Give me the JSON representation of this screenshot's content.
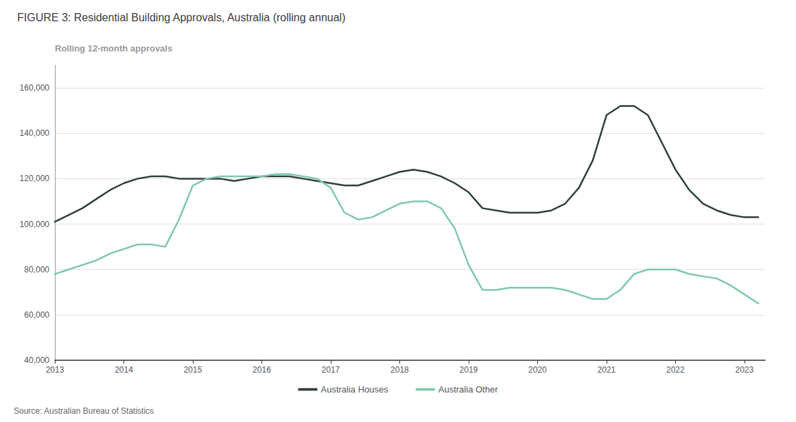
{
  "chart_data": {
    "type": "line",
    "title": "FIGURE 3: Residential Building Approvals, Australia (rolling annual)",
    "ylabel": "Rolling 12-month approvals",
    "annotations": [
      "Source: Australian Bureau of Statistics"
    ],
    "x": [
      2013.0,
      2013.2,
      2013.4,
      2013.6,
      2013.8,
      2014.0,
      2014.2,
      2014.4,
      2014.6,
      2014.8,
      2015.0,
      2015.2,
      2015.4,
      2015.6,
      2015.8,
      2016.0,
      2016.2,
      2016.4,
      2016.6,
      2016.8,
      2017.0,
      2017.2,
      2017.4,
      2017.6,
      2017.8,
      2018.0,
      2018.2,
      2018.4,
      2018.6,
      2018.8,
      2019.0,
      2019.2,
      2019.4,
      2019.6,
      2019.8,
      2020.0,
      2020.2,
      2020.4,
      2020.6,
      2020.8,
      2021.0,
      2021.2,
      2021.4,
      2021.6,
      2021.8,
      2022.0,
      2022.2,
      2022.4,
      2022.6,
      2022.8,
      2023.0,
      2023.2
    ],
    "series": [
      {
        "name": "Australia Houses",
        "color": "#2e3d3d",
        "values": [
          101000,
          104000,
          107000,
          111000,
          115000,
          118000,
          120000,
          121000,
          121000,
          120000,
          120000,
          120000,
          120000,
          119000,
          120000,
          121000,
          121000,
          121000,
          120000,
          119000,
          118000,
          117000,
          117000,
          119000,
          121000,
          123000,
          124000,
          123000,
          121000,
          118000,
          114000,
          107000,
          106000,
          105000,
          105000,
          105000,
          106000,
          109000,
          116000,
          128000,
          148000,
          152000,
          152000,
          148000,
          136000,
          124000,
          115000,
          109000,
          106000,
          104000,
          103000,
          103000
        ]
      },
      {
        "name": "Australia Other",
        "color": "#7ec8a8",
        "values": [
          78000,
          80000,
          82000,
          84000,
          87000,
          89000,
          91000,
          91000,
          90000,
          102000,
          117000,
          120000,
          121000,
          121000,
          121000,
          121000,
          122000,
          122000,
          121000,
          120000,
          116000,
          105000,
          102000,
          103000,
          106000,
          109000,
          110000,
          110000,
          107000,
          98000,
          82000,
          71000,
          71000,
          72000,
          72000,
          72000,
          72000,
          71000,
          69000,
          67000,
          67000,
          71000,
          78000,
          80000,
          80000,
          80000,
          78000,
          77000,
          76000,
          73000,
          69000,
          65000
        ]
      }
    ],
    "xlim": [
      2013.0,
      2023.3
    ],
    "xticks": [
      2013,
      2014,
      2015,
      2016,
      2017,
      2018,
      2019,
      2020,
      2021,
      2022,
      2023
    ],
    "ylim": [
      40000,
      170000
    ],
    "yticks": [
      {
        "value": 40000,
        "label": "40,000"
      },
      {
        "value": 60000,
        "label": "60,000"
      },
      {
        "value": 80000,
        "label": "80,000"
      },
      {
        "value": 100000,
        "label": "100,000"
      },
      {
        "value": 120000,
        "label": "120,000"
      },
      {
        "value": 140000,
        "label": "140,000"
      },
      {
        "value": 160000,
        "label": "160,000"
      }
    ],
    "grid": true,
    "legend": "bottom"
  }
}
